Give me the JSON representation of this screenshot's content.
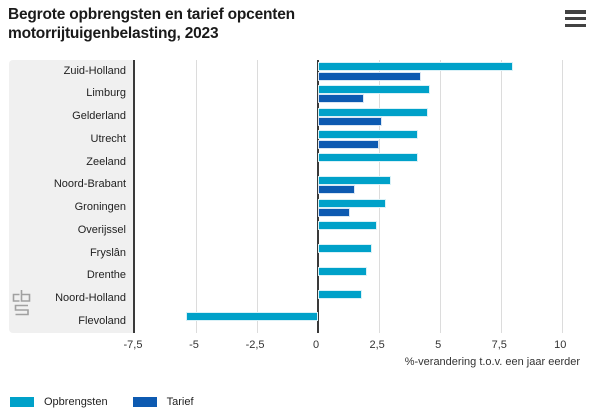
{
  "header": {
    "title_line1": "Begrote opbrengsten en tarief opcenten",
    "title_line2": "motorrijtuigenbelasting, 2023"
  },
  "chart_data": {
    "type": "bar",
    "orientation": "horizontal",
    "title": "Begrote opbrengsten en tarief opcenten motorrijtuigenbelasting, 2023",
    "categories": [
      "Zuid-Holland",
      "Limburg",
      "Gelderland",
      "Utrecht",
      "Zeeland",
      "Noord-Brabant",
      "Groningen",
      "Overijssel",
      "Fryslân",
      "Drenthe",
      "Noord-Holland",
      "Flevoland"
    ],
    "series": [
      {
        "name": "Opbrengsten",
        "color": "#00a1c9",
        "values": [
          8.0,
          4.6,
          4.5,
          4.1,
          4.1,
          3.0,
          2.8,
          2.4,
          2.2,
          2.0,
          1.8,
          -5.4
        ]
      },
      {
        "name": "Tarief",
        "color": "#0d5ab1",
        "values": [
          4.2,
          1.9,
          2.6,
          2.5,
          0,
          1.5,
          1.3,
          0,
          0,
          0,
          0,
          0
        ]
      }
    ],
    "xlabel": "%-verandering t.o.v. een jaar eerder",
    "ylabel": "",
    "xlim": [
      -7.5,
      11.3
    ],
    "x_ticks": [
      {
        "value": -7.5,
        "label": "-7,5"
      },
      {
        "value": -5,
        "label": "-5"
      },
      {
        "value": -2.5,
        "label": "-2,5"
      },
      {
        "value": 0,
        "label": "0"
      },
      {
        "value": 2.5,
        "label": "2,5"
      },
      {
        "value": 5,
        "label": "5"
      },
      {
        "value": 7.5,
        "label": "7,5"
      },
      {
        "value": 10,
        "label": "10"
      }
    ],
    "grid": true,
    "legend_position": "bottom-left"
  },
  "colors": {
    "opbrengsten": "#00a1c9",
    "tarief": "#0d5ab1",
    "label_panel_bg": "#f0f0f0",
    "gridline": "#dcdcdc",
    "axis_line": "#3a3a3a",
    "title_text": "#1a1a1a",
    "menu_icon": "#424242",
    "logo_gray": "#a0a0a0"
  },
  "icons": {
    "menu": "hamburger-icon",
    "logo": "cbs-logo-icon"
  }
}
